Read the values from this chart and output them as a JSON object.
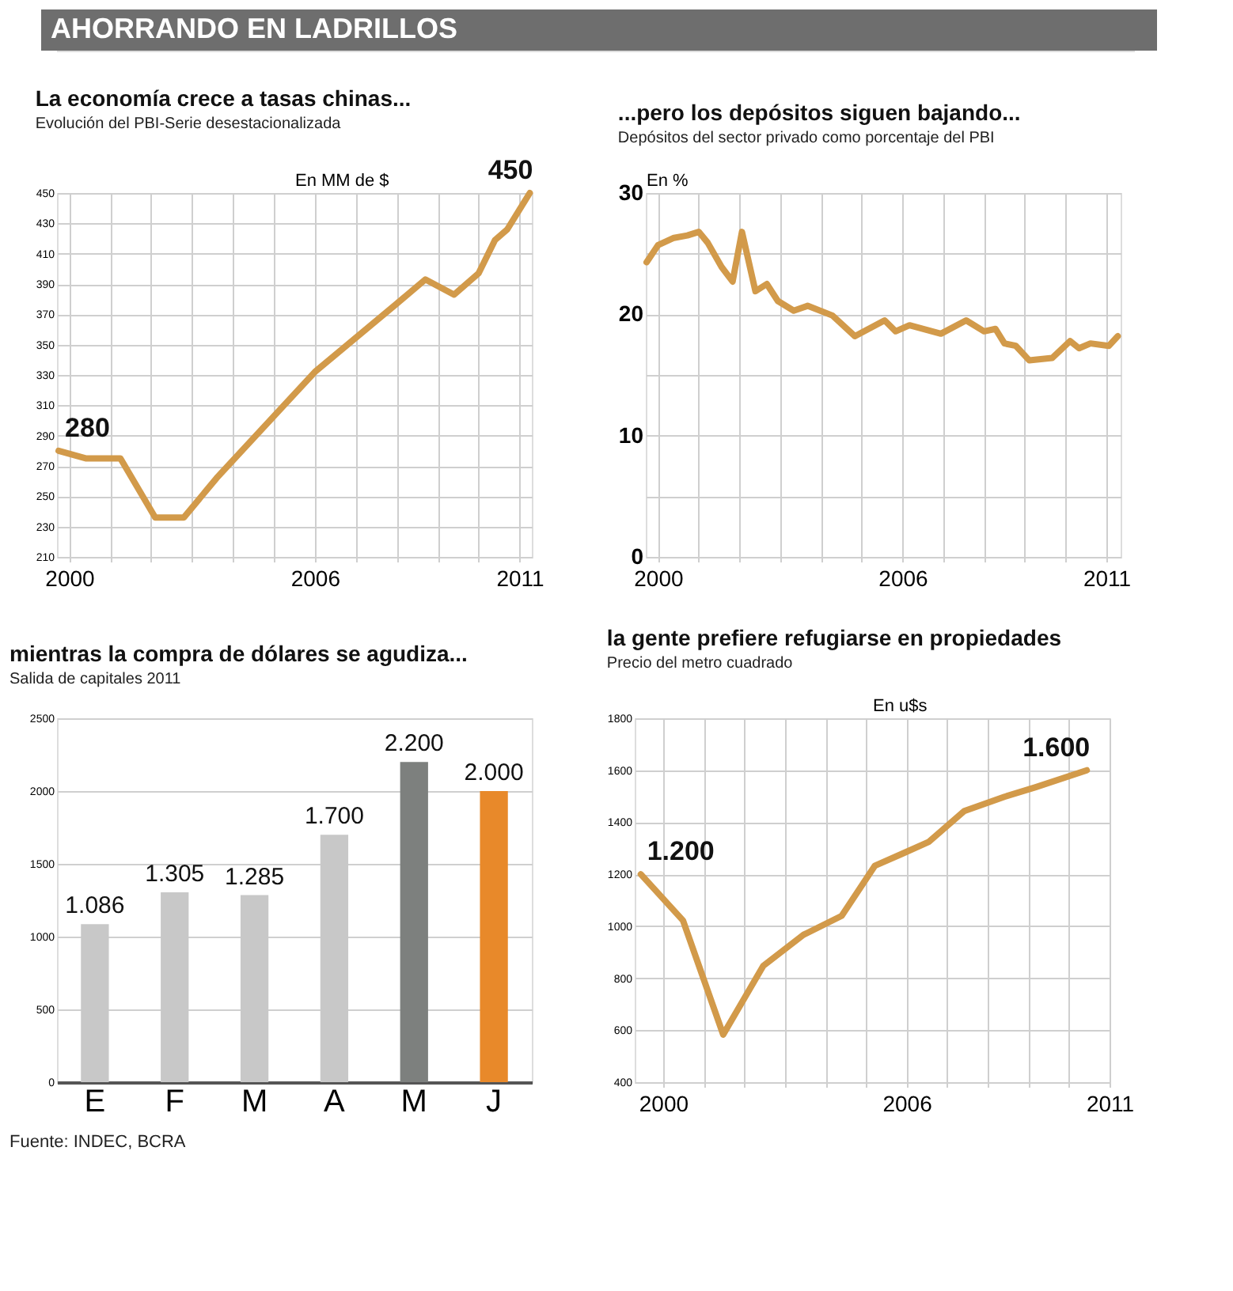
{
  "chart_data": [
    {
      "type": "other",
      "title": "AHORRANDO EN LADRILLOS"
    },
    {
      "type": "line",
      "title": "La economía crece a tasas chinas...",
      "subtitle": "Evolución del PBI-Serie desestacionalizada",
      "ylabel": "En MM de $",
      "x": [
        1999.74,
        2000.4,
        2001.25,
        2002.1,
        2002.8,
        2003.6,
        2006.0,
        2008.0,
        2008.7,
        2009.4,
        2010.0,
        2010.4,
        2010.7,
        2011.25
      ],
      "series": [
        {
          "color": "#d29a4a",
          "values": [
            280,
            275,
            275,
            236,
            236,
            262,
            332,
            377,
            393,
            383,
            397,
            419,
            426,
            450
          ]
        }
      ],
      "xlim": [
        1999.7,
        2011.3
      ],
      "xticks": [
        2000,
        {
          "value": 2001,
          "label": null
        },
        {
          "value": 2002,
          "label": null
        },
        {
          "value": 2003,
          "label": null
        },
        {
          "value": 2004,
          "label": null
        },
        {
          "value": 2005,
          "label": null
        },
        2006,
        {
          "value": 2007,
          "label": null
        },
        {
          "value": 2008,
          "label": null
        },
        {
          "value": 2009,
          "label": null
        },
        {
          "value": 2010,
          "label": null
        },
        2011
      ],
      "ylim": [
        210,
        450
      ],
      "yticks": [
        210,
        230,
        250,
        270,
        290,
        310,
        330,
        350,
        370,
        390,
        410,
        430,
        450
      ],
      "annotations": [
        {
          "text": "280",
          "x": 1999.74,
          "y": 280
        },
        {
          "text": "450",
          "x": 2011.25,
          "y": 450
        }
      ],
      "grid": true,
      "legend": false,
      "marker": "none",
      "line_style": "solid"
    },
    {
      "type": "line",
      "title": "...pero los depósitos siguen bajando...",
      "subtitle": "Depósitos del sector privado como porcentaje del PBI",
      "ylabel": "En %",
      "x": [
        1999.72,
        2000.0,
        2000.39,
        2000.72,
        2001.0,
        2001.22,
        2001.56,
        2001.83,
        2002.06,
        2002.39,
        2002.67,
        2002.94,
        2003.33,
        2003.67,
        2004.28,
        2004.83,
        2005.56,
        2005.83,
        2006.17,
        2006.94,
        2007.56,
        2008.0,
        2008.28,
        2008.5,
        2008.78,
        2009.11,
        2009.67,
        2010.11,
        2010.33,
        2010.61,
        2011.06,
        2011.28
      ],
      "series": [
        {
          "color": "#d29a4a",
          "values": [
            24.3,
            25.7,
            26.3,
            26.5,
            26.8,
            25.9,
            23.9,
            22.7,
            26.8,
            21.9,
            22.5,
            21.1,
            20.3,
            20.7,
            19.9,
            18.2,
            19.5,
            18.6,
            19.1,
            18.4,
            19.5,
            18.6,
            18.8,
            17.6,
            17.4,
            16.2,
            16.4,
            17.8,
            17.2,
            17.6,
            17.4,
            18.2
          ]
        }
      ],
      "xlim": [
        1999.7,
        2011.35
      ],
      "xticks": [
        2000,
        {
          "value": 2001,
          "label": null
        },
        {
          "value": 2002,
          "label": null
        },
        {
          "value": 2003,
          "label": null
        },
        {
          "value": 2004,
          "label": null
        },
        {
          "value": 2005,
          "label": null
        },
        2006,
        {
          "value": 2007,
          "label": null
        },
        {
          "value": 2008,
          "label": null
        },
        {
          "value": 2009,
          "label": null
        },
        {
          "value": 2010,
          "label": null
        },
        2011
      ],
      "ylim": [
        0,
        30
      ],
      "yticks": [
        0,
        {
          "value": 5,
          "label": null
        },
        10,
        {
          "value": 15,
          "label": null
        },
        20,
        {
          "value": 25,
          "label": null
        },
        30
      ],
      "grid": true,
      "legend": false,
      "marker": "none",
      "line_style": "solid"
    },
    {
      "type": "bar",
      "title": "mientras la compra de dólares se agudiza...",
      "subtitle": "Salida de capitales 2011",
      "categories": [
        "E",
        "F",
        "M",
        "A",
        "M",
        "J"
      ],
      "values": [
        1086,
        1305,
        1285,
        1700,
        2200,
        2000
      ],
      "colors": [
        "#c8c8c8",
        "#c8c8c8",
        "#c8c8c8",
        "#c8c8c8",
        "#7d807e",
        "#e8892a"
      ],
      "value_labels": [
        "1.086",
        "1.305",
        "1.285",
        "1.700",
        "2.200",
        "2.000"
      ],
      "ylim": [
        0,
        2500
      ],
      "yticks": [
        0,
        500,
        1000,
        1500,
        2000,
        2500
      ],
      "annotations": [
        "Fuente: INDEC, BCRA"
      ],
      "grid": "y",
      "legend": false
    },
    {
      "type": "line",
      "title": "la gente prefiere refugiarse en propiedades",
      "subtitle": "Precio del metro cuadrado",
      "ylabel": "En u$s",
      "x": [
        1999.45,
        2000.49,
        2001.48,
        2002.47,
        2003.46,
        2004.4,
        2005.22,
        2005.88,
        2006.54,
        2007.42,
        2008.41,
        2009.18,
        2010.44
      ],
      "series": [
        {
          "color": "#d29a4a",
          "values": [
            1200,
            1022,
            583,
            848,
            967,
            1040,
            1233,
            1278,
            1324,
            1443,
            1498,
            1535,
            1600
          ]
        }
      ],
      "xlim": [
        1999.3,
        2011.0
      ],
      "xticks": [
        2000,
        {
          "value": 2001,
          "label": null
        },
        {
          "value": 2002,
          "label": null
        },
        {
          "value": 2003,
          "label": null
        },
        {
          "value": 2004,
          "label": null
        },
        {
          "value": 2005,
          "label": null
        },
        2006,
        {
          "value": 2007,
          "label": null
        },
        {
          "value": 2008,
          "label": null
        },
        {
          "value": 2009,
          "label": null
        },
        {
          "value": 2010,
          "label": null
        },
        2011
      ],
      "ylim": [
        400,
        1800
      ],
      "yticks": [
        400,
        600,
        800,
        1000,
        1200,
        1400,
        1600,
        1800
      ],
      "annotations": [
        {
          "text": "1.200",
          "x": 1999.45,
          "y": 1200
        },
        {
          "text": "1.600",
          "x": 2010.44,
          "y": 1600
        }
      ],
      "grid": true,
      "legend": false,
      "marker": "none",
      "line_style": "solid"
    }
  ]
}
